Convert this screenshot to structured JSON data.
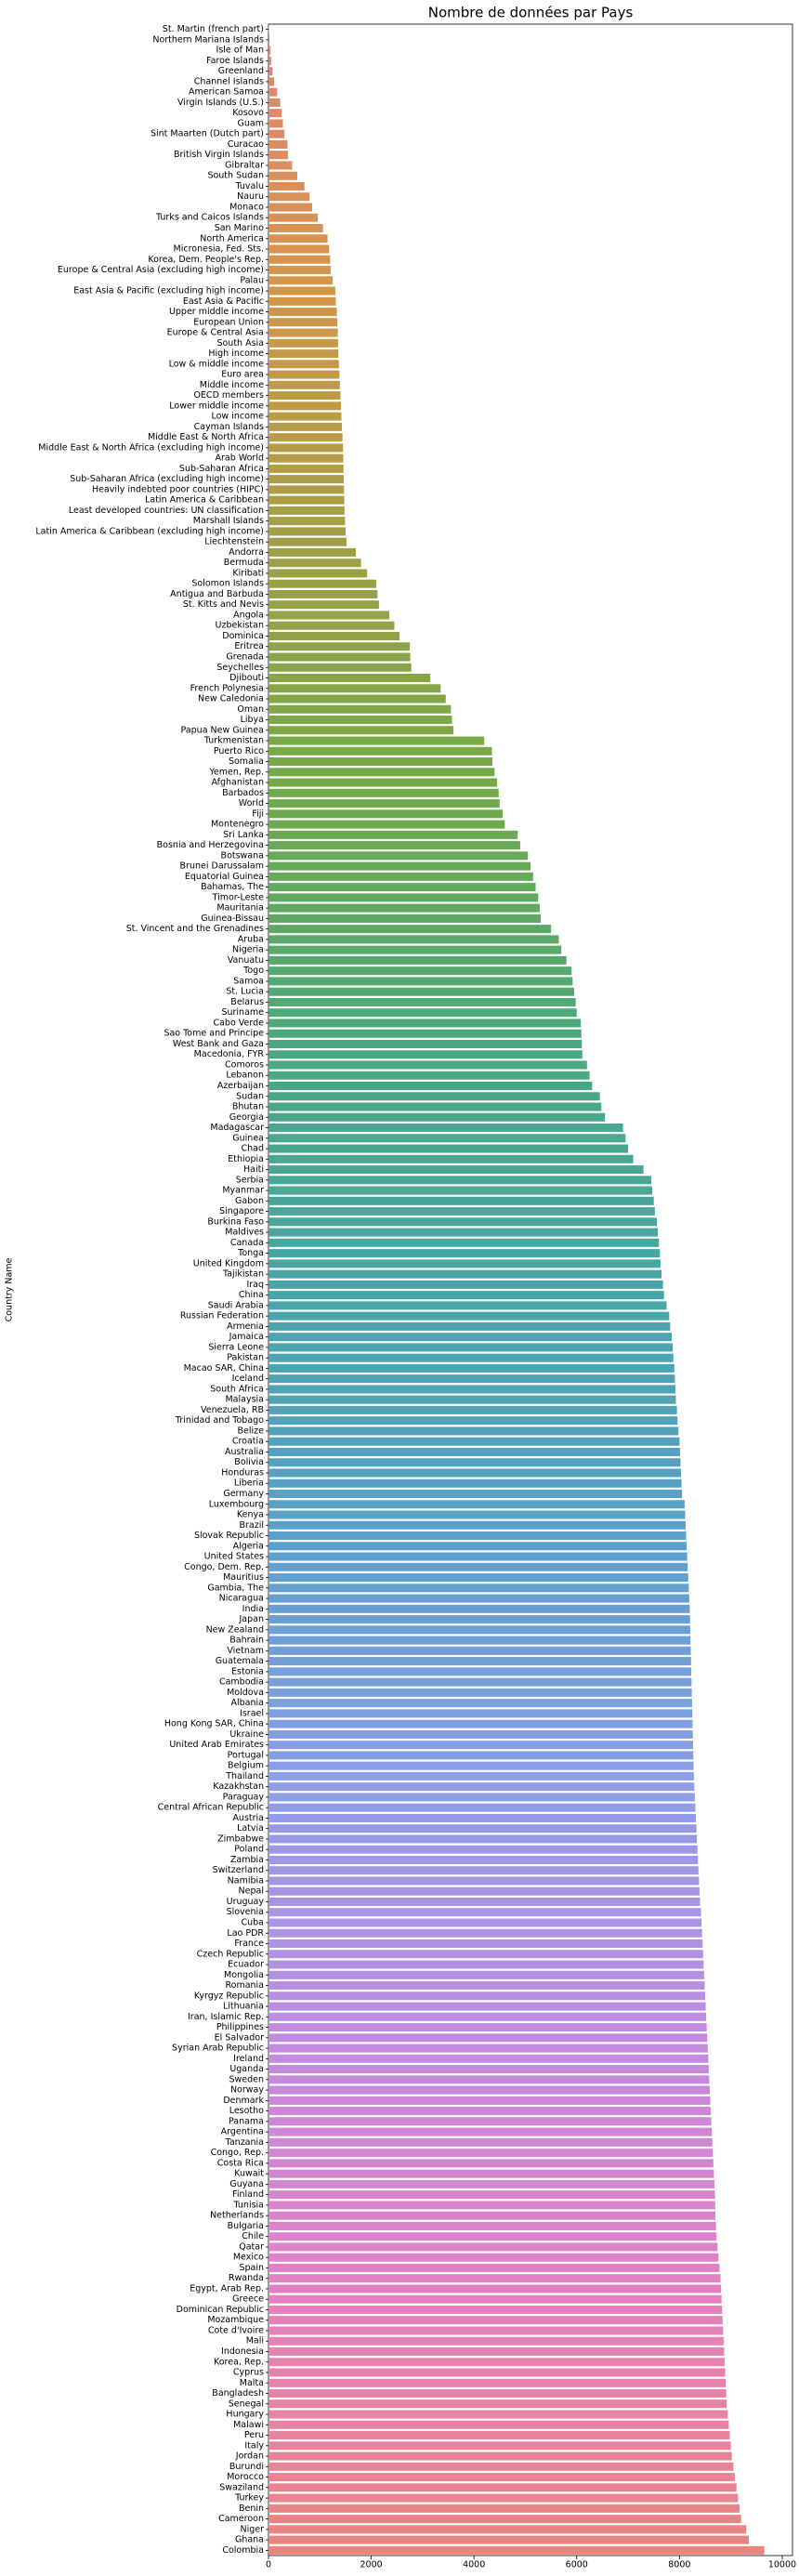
{
  "chart_data": {
    "type": "bar",
    "orientation": "horizontal",
    "title": "Nombre de données par Pays",
    "ylabel": "Country Name",
    "palette": [
      "#e3837a",
      "#d49648",
      "#a39f45",
      "#72aa47",
      "#4aa97c",
      "#47a5a7",
      "#5aa0cc",
      "#8f9ee8",
      "#c48ae0",
      "#e580c1",
      "#e8857f"
    ],
    "xlim": [
      0,
      10200
    ],
    "xticks": [
      0,
      2000,
      4000,
      6000,
      8000,
      10000
    ],
    "categories": [
      "St. Martin (french part)",
      "Northern Mariana Islands",
      "Isle of Man",
      "Faroe Islands",
      "Greenland",
      "Channel Islands",
      "American Samoa",
      "Virgin Islands (U.S.)",
      "Kosovo",
      "Guam",
      "Sint Maarten (Dutch part)",
      "Curacao",
      "British Virgin Islands",
      "Gibraltar",
      "South Sudan",
      "Tuvalu",
      "Nauru",
      "Monaco",
      "Turks and Caicos Islands",
      "San Marino",
      "North America",
      "Micronesia, Fed. Sts.",
      "Korea, Dem. People's Rep.",
      "Europe & Central Asia (excluding high income)",
      "Palau",
      "East Asia & Pacific (excluding high income)",
      "East Asia & Pacific",
      "Upper middle income",
      "European Union",
      "Europe & Central Asia",
      "South Asia",
      "High income",
      "Low & middle income",
      "Euro area",
      "Middle income",
      "OECD members",
      "Lower middle income",
      "Low income",
      "Cayman Islands",
      "Middle East & North Africa",
      "Middle East & North Africa (excluding high income)",
      "Arab World",
      "Sub-Saharan Africa",
      "Sub-Saharan Africa (excluding high income)",
      "Heavily indebted poor countries (HIPC)",
      "Latin America & Caribbean",
      "Least developed countries: UN classification",
      "Marshall Islands",
      "Latin America & Caribbean (excluding high income)",
      "Liechtenstein",
      "Andorra",
      "Bermuda",
      "Kiribati",
      "Solomon Islands",
      "Antigua and Barbuda",
      "St. Kitts and Nevis",
      "Angola",
      "Uzbekistan",
      "Dominica",
      "Eritrea",
      "Grenada",
      "Seychelles",
      "Djibouti",
      "French Polynesia",
      "New Caledonia",
      "Oman",
      "Libya",
      "Papua New Guinea",
      "Turkmenistan",
      "Puerto Rico",
      "Somalia",
      "Yemen, Rep.",
      "Afghanistan",
      "Barbados",
      "World",
      "Fiji",
      "Montenegro",
      "Sri Lanka",
      "Bosnia and Herzegovina",
      "Botswana",
      "Brunei Darussalam",
      "Equatorial Guinea",
      "Bahamas, The",
      "Timor-Leste",
      "Mauritania",
      "Guinea-Bissau",
      "St. Vincent and the Grenadines",
      "Aruba",
      "Nigeria",
      "Vanuatu",
      "Togo",
      "Samoa",
      "St. Lucia",
      "Belarus",
      "Suriname",
      "Cabo Verde",
      "Sao Tome and Principe",
      "West Bank and Gaza",
      "Macedonia, FYR",
      "Comoros",
      "Lebanon",
      "Azerbaijan",
      "Sudan",
      "Bhutan",
      "Georgia",
      "Madagascar",
      "Guinea",
      "Chad",
      "Ethiopia",
      "Haiti",
      "Serbia",
      "Myanmar",
      "Gabon",
      "Singapore",
      "Burkina Faso",
      "Maldives",
      "Canada",
      "Tonga",
      "United Kingdom",
      "Tajikistan",
      "Iraq",
      "China",
      "Saudi Arabia",
      "Russian Federation",
      "Armenia",
      "Jamaica",
      "Sierra Leone",
      "Pakistan",
      "Macao SAR, China",
      "Iceland",
      "South Africa",
      "Malaysia",
      "Venezuela, RB",
      "Trinidad and Tobago",
      "Belize",
      "Croatia",
      "Australia",
      "Bolivia",
      "Honduras",
      "Liberia",
      "Germany",
      "Luxembourg",
      "Kenya",
      "Brazil",
      "Slovak Republic",
      "Algeria",
      "United States",
      "Congo, Dem. Rep.",
      "Mauritius",
      "Gambia, The",
      "Nicaragua",
      "India",
      "Japan",
      "New Zealand",
      "Bahrain",
      "Vietnam",
      "Guatemala",
      "Estonia",
      "Cambodia",
      "Moldova",
      "Albania",
      "Israel",
      "Hong Kong SAR, China",
      "Ukraine",
      "United Arab Emirates",
      "Portugal",
      "Belgium",
      "Thailand",
      "Kazakhstan",
      "Paraguay",
      "Central African Republic",
      "Austria",
      "Latvia",
      "Zimbabwe",
      "Poland",
      "Zambia",
      "Switzerland",
      "Namibia",
      "Nepal",
      "Uruguay",
      "Slovenia",
      "Cuba",
      "Lao PDR",
      "France",
      "Czech Republic",
      "Ecuador",
      "Mongolia",
      "Romania",
      "Kyrgyz Republic",
      "Lithuania",
      "Iran, Islamic Rep.",
      "Philippines",
      "El Salvador",
      "Syrian Arab Republic",
      "Ireland",
      "Uganda",
      "Sweden",
      "Norway",
      "Denmark",
      "Lesotho",
      "Panama",
      "Argentina",
      "Tanzania",
      "Congo, Rep.",
      "Costa Rica",
      "Kuwait",
      "Guyana",
      "Finland",
      "Tunisia",
      "Netherlands",
      "Bulgaria",
      "Chile",
      "Qatar",
      "Mexico",
      "Spain",
      "Rwanda",
      "Egypt, Arab Rep.",
      "Greece",
      "Dominican Republic",
      "Mozambique",
      "Cote d'Ivoire",
      "Mali",
      "Indonesia",
      "Korea, Rep.",
      "Cyprus",
      "Malta",
      "Bangladesh",
      "Senegal",
      "Hungary",
      "Malawi",
      "Peru",
      "Italy",
      "Jordan",
      "Burundi",
      "Morocco",
      "Swaziland",
      "Turkey",
      "Benin",
      "Cameroon",
      "Niger",
      "Ghana",
      "Colombia"
    ],
    "values": [
      10,
      20,
      40,
      50,
      80,
      110,
      170,
      230,
      260,
      280,
      310,
      370,
      380,
      460,
      560,
      700,
      800,
      850,
      960,
      1060,
      1150,
      1180,
      1200,
      1210,
      1250,
      1300,
      1310,
      1330,
      1340,
      1350,
      1355,
      1360,
      1370,
      1380,
      1390,
      1400,
      1410,
      1420,
      1430,
      1440,
      1450,
      1455,
      1460,
      1465,
      1470,
      1475,
      1480,
      1490,
      1500,
      1520,
      1700,
      1800,
      1920,
      2100,
      2120,
      2150,
      2350,
      2450,
      2550,
      2750,
      2760,
      2780,
      3150,
      3350,
      3450,
      3550,
      3570,
      3600,
      4200,
      4350,
      4360,
      4400,
      4450,
      4480,
      4500,
      4560,
      4600,
      4850,
      4900,
      5050,
      5100,
      5150,
      5200,
      5250,
      5280,
      5300,
      5500,
      5650,
      5700,
      5800,
      5900,
      5920,
      5950,
      5980,
      6000,
      6080,
      6090,
      6100,
      6110,
      6200,
      6250,
      6300,
      6450,
      6480,
      6550,
      6900,
      6950,
      7000,
      7100,
      7300,
      7450,
      7470,
      7500,
      7520,
      7560,
      7580,
      7600,
      7620,
      7630,
      7650,
      7680,
      7700,
      7750,
      7800,
      7820,
      7850,
      7870,
      7880,
      7900,
      7910,
      7920,
      7930,
      7950,
      7960,
      7980,
      8000,
      8010,
      8020,
      8030,
      8040,
      8050,
      8100,
      8110,
      8120,
      8130,
      8140,
      8150,
      8160,
      8170,
      8180,
      8190,
      8200,
      8205,
      8210,
      8215,
      8220,
      8225,
      8230,
      8235,
      8240,
      8245,
      8250,
      8255,
      8260,
      8265,
      8270,
      8275,
      8280,
      8290,
      8300,
      8310,
      8320,
      8330,
      8340,
      8350,
      8360,
      8370,
      8380,
      8390,
      8400,
      8420,
      8430,
      8440,
      8450,
      8460,
      8470,
      8480,
      8490,
      8500,
      8510,
      8520,
      8530,
      8540,
      8550,
      8560,
      8570,
      8580,
      8590,
      8600,
      8610,
      8620,
      8630,
      8640,
      8650,
      8660,
      8670,
      8680,
      8690,
      8695,
      8700,
      8710,
      8720,
      8740,
      8760,
      8780,
      8800,
      8810,
      8820,
      8830,
      8840,
      8850,
      8860,
      8870,
      8880,
      8890,
      8900,
      8910,
      8920,
      8940,
      8960,
      8980,
      9000,
      9020,
      9050,
      9080,
      9110,
      9140,
      9170,
      9200,
      9300,
      9350,
      9650
    ]
  }
}
